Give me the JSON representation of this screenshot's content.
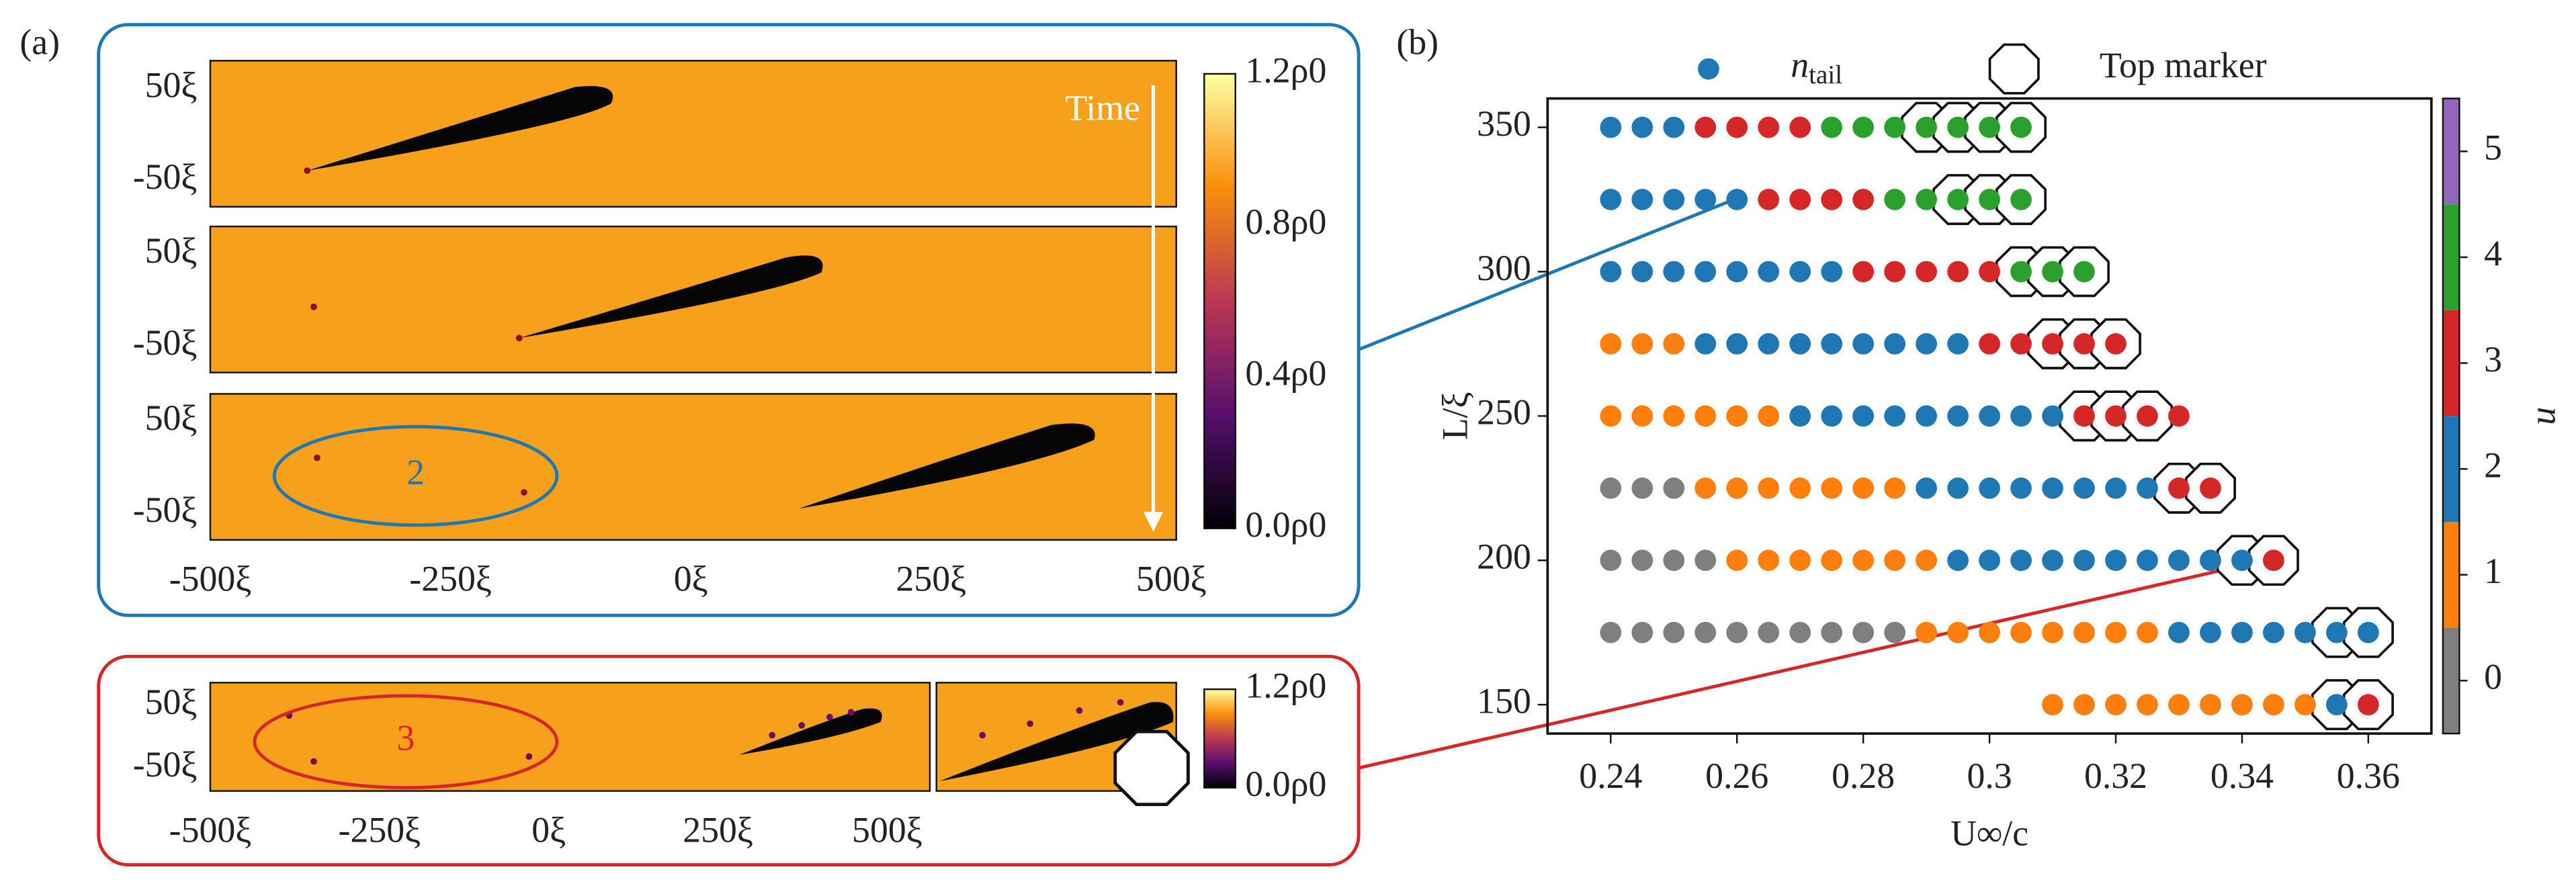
{
  "panel_a": {
    "label": "(a)",
    "time": "Time",
    "y_ticks": [
      "50ξ",
      "-50ξ"
    ],
    "x_ticks": [
      "-500ξ",
      "-250ξ",
      "0ξ",
      "250ξ",
      "500ξ"
    ],
    "colorbar": [
      "1.2ρ0",
      "0.8ρ0",
      "0.4ρ0",
      "0.0ρ0"
    ],
    "cluster_count": "2"
  },
  "panel_a_bottom": {
    "y_ticks": [
      "50ξ",
      "-50ξ"
    ],
    "x_ticks": [
      "-500ξ",
      "-250ξ",
      "0ξ",
      "250ξ",
      "500ξ"
    ],
    "colorbar": [
      "1.2ρ0",
      "0.0ρ0"
    ],
    "cluster_count": "3"
  },
  "chart_data": {
    "type": "scatter",
    "label": "(b)",
    "x_label": "U∞/c",
    "y_label": "L/ξ",
    "legend": [
      {
        "label": "n",
        "sub": "tail",
        "color": "#1f77b4"
      },
      {
        "label": "Top marker"
      }
    ],
    "xlim": [
      0.23,
      0.37
    ],
    "xticks": [
      0.24,
      0.26,
      0.28,
      0.3,
      0.32,
      0.34,
      0.36
    ],
    "ylim": [
      140,
      360
    ],
    "yticks": [
      150,
      200,
      250,
      300,
      350
    ],
    "colorbar": {
      "label": "n",
      "ticks": [
        0,
        1,
        2,
        3,
        4,
        5
      ],
      "colors": [
        "#7f7f7f",
        "#ff7f0e",
        "#1f77b4",
        "#d62728",
        "#2ca02c",
        "#9467bd"
      ]
    },
    "rows": [
      {
        "y": 350,
        "x": [
          0.24,
          0.245,
          0.25,
          0.255,
          0.26,
          0.265,
          0.27,
          0.275,
          0.28,
          0.285,
          0.29,
          0.295,
          0.3,
          0.305
        ],
        "n": [
          2,
          2,
          2,
          3,
          3,
          3,
          3,
          4,
          4,
          4,
          4,
          4,
          4,
          4
        ],
        "top": [
          0.29,
          0.295,
          0.3,
          0.305
        ]
      },
      {
        "y": 325,
        "x": [
          0.24,
          0.245,
          0.25,
          0.255,
          0.26,
          0.265,
          0.27,
          0.275,
          0.28,
          0.285,
          0.29,
          0.295,
          0.3,
          0.305
        ],
        "n": [
          2,
          2,
          2,
          2,
          2,
          3,
          3,
          3,
          3,
          4,
          4,
          4,
          4,
          4
        ],
        "top": [
          0.295,
          0.3,
          0.305
        ]
      },
      {
        "y": 300,
        "x": [
          0.24,
          0.245,
          0.25,
          0.255,
          0.26,
          0.265,
          0.27,
          0.275,
          0.28,
          0.285,
          0.29,
          0.295,
          0.3,
          0.305,
          0.31,
          0.315
        ],
        "n": [
          2,
          2,
          2,
          2,
          2,
          2,
          2,
          2,
          3,
          3,
          3,
          3,
          3,
          4,
          4,
          4
        ],
        "top": [
          0.305,
          0.31,
          0.315
        ]
      },
      {
        "y": 275,
        "x": [
          0.24,
          0.245,
          0.25,
          0.255,
          0.26,
          0.265,
          0.27,
          0.275,
          0.28,
          0.285,
          0.29,
          0.295,
          0.3,
          0.305,
          0.31,
          0.315,
          0.32
        ],
        "n": [
          1,
          1,
          1,
          2,
          2,
          2,
          2,
          2,
          2,
          2,
          2,
          2,
          3,
          3,
          3,
          3,
          3
        ],
        "top": [
          0.31,
          0.315,
          0.32
        ]
      },
      {
        "y": 250,
        "x": [
          0.24,
          0.245,
          0.25,
          0.255,
          0.26,
          0.265,
          0.27,
          0.275,
          0.28,
          0.285,
          0.29,
          0.295,
          0.3,
          0.305,
          0.31,
          0.315,
          0.32,
          0.325,
          0.33
        ],
        "n": [
          1,
          1,
          1,
          1,
          1,
          1,
          2,
          2,
          2,
          2,
          2,
          2,
          2,
          2,
          2,
          3,
          3,
          3,
          3
        ],
        "top": [
          0.315,
          0.32,
          0.325
        ]
      },
      {
        "y": 225,
        "x": [
          0.24,
          0.245,
          0.25,
          0.255,
          0.26,
          0.265,
          0.27,
          0.275,
          0.28,
          0.285,
          0.29,
          0.295,
          0.3,
          0.305,
          0.31,
          0.315,
          0.32,
          0.325,
          0.33,
          0.335
        ],
        "n": [
          0,
          0,
          0,
          1,
          1,
          1,
          1,
          1,
          1,
          1,
          2,
          2,
          2,
          2,
          2,
          2,
          2,
          2,
          3,
          3
        ],
        "top": [
          0.33,
          0.335
        ]
      },
      {
        "y": 200,
        "x": [
          0.24,
          0.245,
          0.25,
          0.255,
          0.26,
          0.265,
          0.27,
          0.275,
          0.28,
          0.285,
          0.29,
          0.295,
          0.3,
          0.305,
          0.31,
          0.315,
          0.32,
          0.325,
          0.33,
          0.335,
          0.34,
          0.345
        ],
        "n": [
          0,
          0,
          0,
          0,
          1,
          1,
          1,
          1,
          1,
          1,
          1,
          2,
          2,
          2,
          2,
          2,
          2,
          2,
          2,
          2,
          2,
          3
        ],
        "top": [
          0.34,
          0.345
        ]
      },
      {
        "y": 175,
        "x": [
          0.24,
          0.245,
          0.25,
          0.255,
          0.26,
          0.265,
          0.27,
          0.275,
          0.28,
          0.285,
          0.29,
          0.295,
          0.3,
          0.305,
          0.31,
          0.315,
          0.32,
          0.325,
          0.33,
          0.335,
          0.34,
          0.345,
          0.35,
          0.355,
          0.36
        ],
        "n": [
          0,
          0,
          0,
          0,
          0,
          0,
          0,
          0,
          0,
          0,
          1,
          1,
          1,
          1,
          1,
          1,
          1,
          1,
          2,
          2,
          2,
          2,
          2,
          2,
          2
        ],
        "top": [
          0.355,
          0.36
        ]
      },
      {
        "y": 150,
        "x": [
          0.31,
          0.315,
          0.32,
          0.325,
          0.33,
          0.335,
          0.34,
          0.345,
          0.35,
          0.355,
          0.36
        ],
        "n": [
          1,
          1,
          1,
          1,
          1,
          1,
          1,
          1,
          1,
          2,
          3
        ],
        "top": [
          0.355,
          0.36
        ]
      }
    ]
  }
}
